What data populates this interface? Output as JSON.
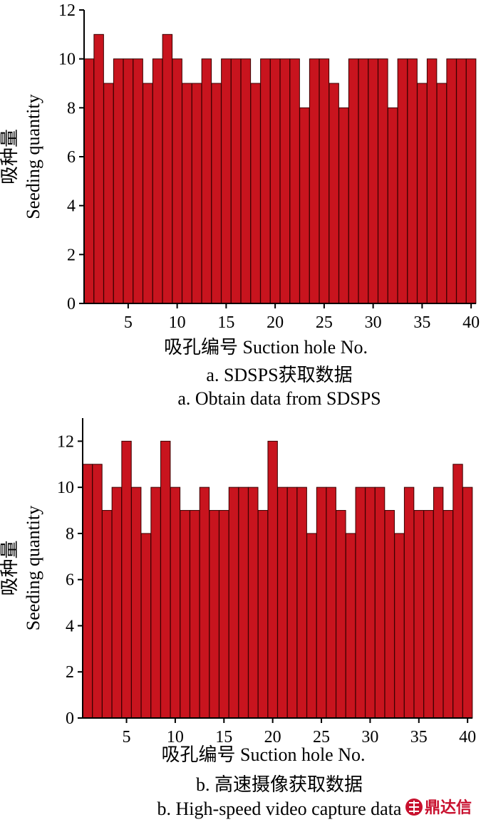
{
  "colors": {
    "bar_fill": "#c8141e",
    "bar_stroke": "#3a0000",
    "axis": "#000000",
    "logo": "#c8102e"
  },
  "watermark": {
    "text": "鼎达信",
    "icon": "logo-mark"
  },
  "chart_data": [
    {
      "type": "bar",
      "x": [
        1,
        2,
        3,
        4,
        5,
        6,
        7,
        8,
        9,
        10,
        11,
        12,
        13,
        14,
        15,
        16,
        17,
        18,
        19,
        20,
        21,
        22,
        23,
        24,
        25,
        26,
        27,
        28,
        29,
        30,
        31,
        32,
        33,
        34,
        35,
        36,
        37,
        38,
        39,
        40
      ],
      "values": [
        10,
        11,
        9,
        10,
        10,
        10,
        9,
        10,
        11,
        10,
        9,
        9,
        10,
        9,
        10,
        10,
        10,
        9,
        10,
        10,
        10,
        10,
        8,
        10,
        10,
        9,
        8,
        10,
        10,
        10,
        10,
        8,
        10,
        10,
        9,
        10,
        9,
        10,
        10,
        10
      ],
      "xlabel": "吸孔编号 Suction hole No.",
      "ylabel_cn": "吸种量",
      "ylabel_en": "Seeding quantity",
      "xticks": [
        5,
        10,
        15,
        20,
        25,
        30,
        35,
        40
      ],
      "yticks": [
        0,
        2,
        4,
        6,
        8,
        10,
        12
      ],
      "xlim": [
        0.5,
        40.5
      ],
      "ylim": [
        0,
        12
      ],
      "caption_cn": "a. SDSPS获取数据",
      "caption_en": "a. Obtain data from SDSPS"
    },
    {
      "type": "bar",
      "x": [
        1,
        2,
        3,
        4,
        5,
        6,
        7,
        8,
        9,
        10,
        11,
        12,
        13,
        14,
        15,
        16,
        17,
        18,
        19,
        20,
        21,
        22,
        23,
        24,
        25,
        26,
        27,
        28,
        29,
        30,
        31,
        32,
        33,
        34,
        35,
        36,
        37,
        38,
        39,
        40
      ],
      "values": [
        11,
        11,
        9,
        10,
        12,
        10,
        8,
        10,
        12,
        10,
        9,
        9,
        10,
        9,
        9,
        10,
        10,
        10,
        9,
        12,
        10,
        10,
        10,
        8,
        10,
        10,
        9,
        8,
        10,
        10,
        10,
        9,
        8,
        10,
        9,
        9,
        10,
        9,
        11,
        10
      ],
      "xlabel": "吸孔编号 Suction hole No.",
      "ylabel_cn": "吸种量",
      "ylabel_en": "Seeding quantity",
      "xticks": [
        5,
        10,
        15,
        20,
        25,
        30,
        35,
        40
      ],
      "yticks": [
        0,
        2,
        4,
        6,
        8,
        10,
        12
      ],
      "xlim": [
        0.5,
        40.5
      ],
      "ylim": [
        0,
        13
      ],
      "caption_cn": "b. 高速摄像获取数据",
      "caption_en": "b. High-speed video capture data"
    }
  ]
}
